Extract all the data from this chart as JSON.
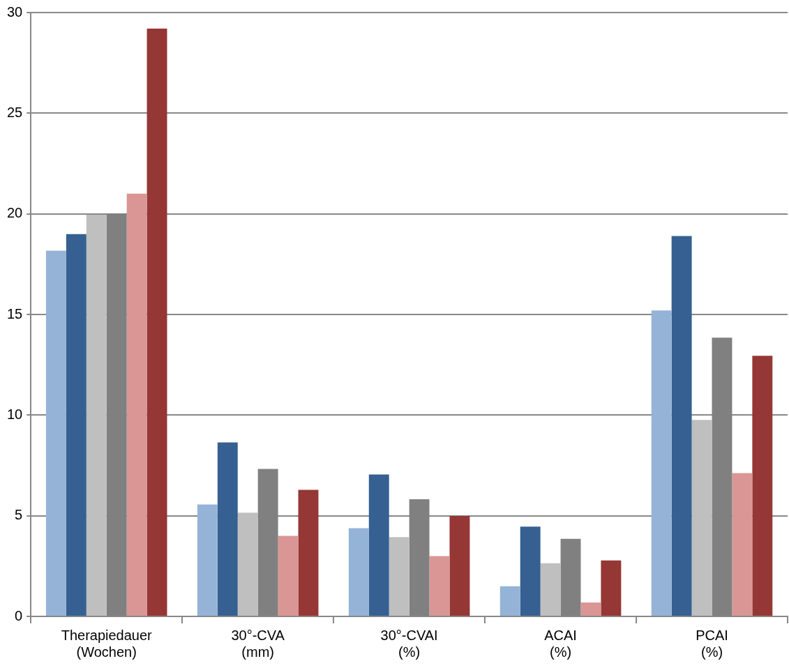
{
  "chart_data": {
    "type": "bar",
    "categories": [
      "Therapiedauer (Wochen)",
      "30°-CVA (mm)",
      "30°-CVAI (%)",
      "ACAI (%)",
      "PCAI (%)"
    ],
    "series": [
      {
        "color": "#95b3d7",
        "values": [
          18.17,
          5.56,
          4.38,
          1.5,
          15.2
        ]
      },
      {
        "color": "#366092",
        "values": [
          18.99,
          8.64,
          7.05,
          4.46,
          18.9
        ]
      },
      {
        "color": "#bfbfbf",
        "values": [
          19.95,
          5.15,
          3.94,
          2.64,
          9.76
        ]
      },
      {
        "color": "#808080",
        "values": [
          20.02,
          7.33,
          5.82,
          3.85,
          13.85
        ]
      },
      {
        "color": "#da9694",
        "values": [
          21.0,
          4.0,
          3.0,
          0.69,
          7.12
        ]
      },
      {
        "color": "#953735",
        "values": [
          29.2,
          6.29,
          4.99,
          2.78,
          12.95
        ]
      }
    ],
    "ylim": [
      0,
      30
    ],
    "yticks": [
      0,
      5,
      10,
      15,
      20,
      25,
      30
    ],
    "grid": "y",
    "legend": false
  }
}
